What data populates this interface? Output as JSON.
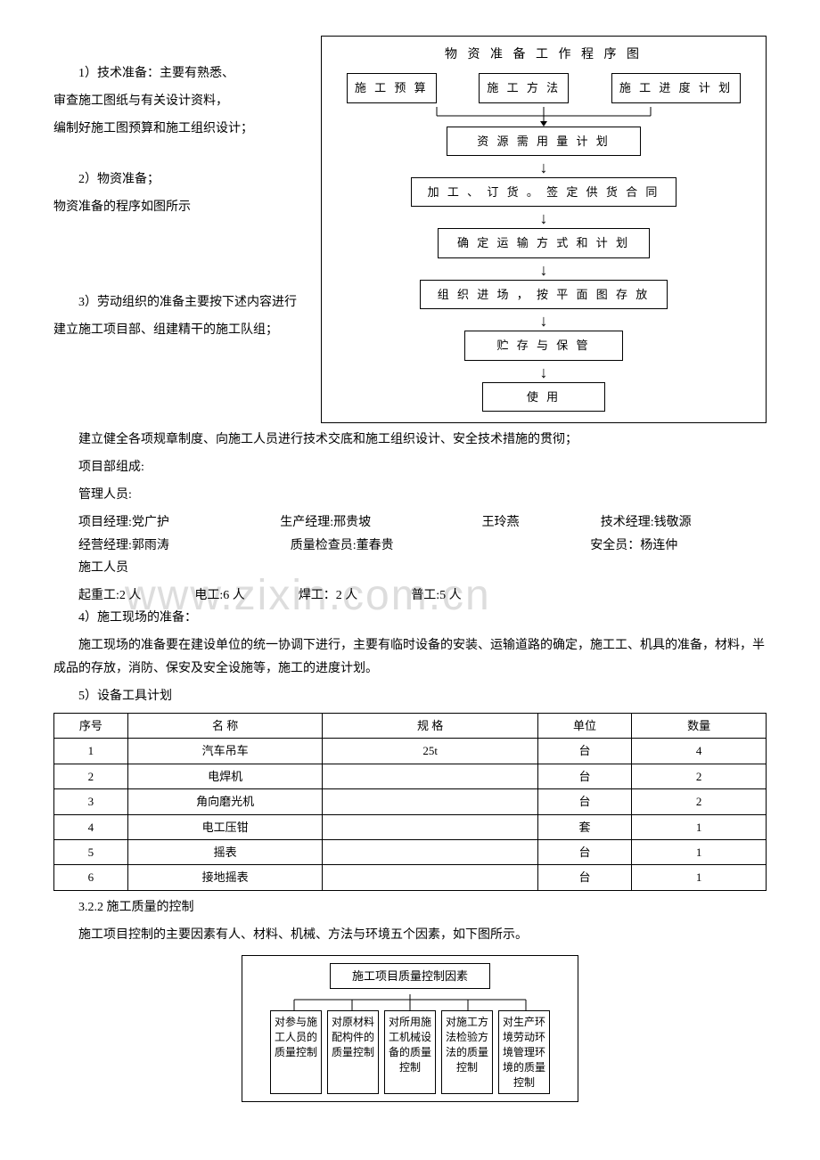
{
  "section1": {
    "item1_title": "1）技术准备：主要有熟悉、",
    "item1_line2": "审查施工图纸与有关设计资料，",
    "item1_line3": "编制好施工图预算和施工组织设计；",
    "item2_title": "2）物资准备；",
    "item2_line2": "物资准备的程序如图所示",
    "item3_title": "3）劳动组织的准备主要按下述内容进行",
    "item3_line2": "建立施工项目部、组建精干的施工队组；",
    "item3_line3": "建立健全各项规章制度、向施工人员进行技术交底和施工组织设计、安全技术措施的贯彻；",
    "proj_compose": "项目部组成:",
    "mgmt_label": "管理人员:",
    "pm": "项目经理:党广护",
    "prod_mgr": "生产经理:邢贵坡",
    "wang": "王玲燕",
    "tech_mgr": "技术经理:钱敬源",
    "biz_mgr": "经营经理:郭雨涛",
    "qc": "质量检查员:董春贵",
    "safety": "安全员：杨连仲",
    "workers_label": "施工人员",
    "crane": "起重工:2 人",
    "elec": "电工:6 人",
    "weld": "焊工：2 人",
    "general": "普工:5 人",
    "item4_title": "4）施工现场的准备：",
    "item4_body": "施工现场的准备要在建设单位的统一协调下进行，主要有临时设备的安装、运输道路的确定，施工工、机具的准备，材料，半成品的存放，消防、保安及安全设施等，施工的进度计划。",
    "item5_title": "5）设备工具计划"
  },
  "flowchart": {
    "title": "物 资 准 备 工 作 程 序 图",
    "top": [
      "施 工 预 算",
      "施 工 方 法",
      "施 工 进 度 计 划"
    ],
    "steps": [
      "资 源 需 用 量 计 划",
      "加 工 、 订 货 。 签 定 供 货 合 同",
      "确 定 运 输 方 式 和 计 划",
      "组 织 进 场 ， 按 平 面 图 存 放",
      "贮 存 与 保 管",
      "使  用"
    ]
  },
  "watermark": "www.zixin.com.cn",
  "equip_table": {
    "headers": [
      "序号",
      "名        称",
      "规        格",
      "单位",
      "数量"
    ],
    "rows": [
      [
        "1",
        "汽车吊车",
        "25t",
        "台",
        "4"
      ],
      [
        "2",
        "电焊机",
        "",
        "台",
        "2"
      ],
      [
        "3",
        "角向磨光机",
        "",
        "台",
        "2"
      ],
      [
        "4",
        "电工压钳",
        "",
        "套",
        "1"
      ],
      [
        "5",
        "摇表",
        "",
        "台",
        "1"
      ],
      [
        "6",
        "接地摇表",
        "",
        "台",
        "1"
      ]
    ],
    "col_widths": [
      "60px",
      "180px",
      "200px",
      "80px",
      "120px"
    ]
  },
  "section322": {
    "heading": "3.2.2 施工质量的控制",
    "body": "施工项目控制的主要因素有人、材料、机械、方法与环境五个因素，如下图所示。"
  },
  "quality": {
    "title": "施工项目质量控制因素",
    "boxes": [
      "对参与施工人员的质量控制",
      "对原材料配构件的质量控制",
      "对所用施工机械设备的质量控制",
      "对施工方法检验方法的质量控制",
      "对生产环境劳动环境管理环境的质量控制"
    ]
  }
}
